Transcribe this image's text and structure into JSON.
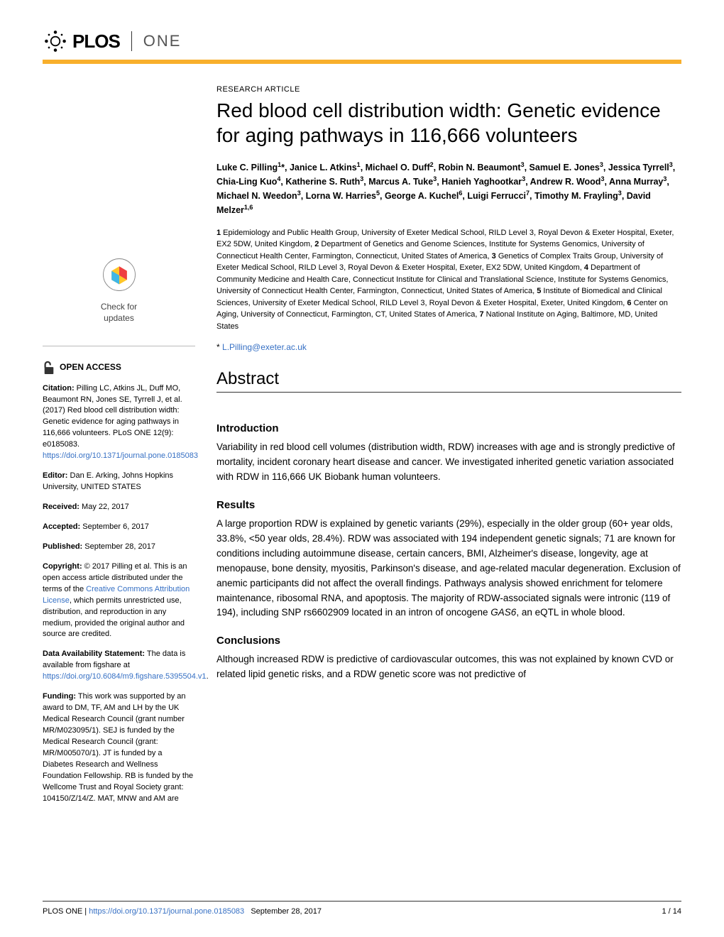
{
  "journal": {
    "name_primary": "PLOS",
    "name_secondary": "ONE",
    "accent_color": "#f8af2c"
  },
  "article": {
    "type": "RESEARCH ARTICLE",
    "title": "Red blood cell distribution width: Genetic evidence for aging pathways in 116,666 volunteers",
    "authors_html": "Luke C. Pilling<sup>1</sup>*, Janice L. Atkins<sup>1</sup>, Michael O. Duff<sup>2</sup>, Robin N. Beaumont<sup>3</sup>, Samuel E. Jones<sup>3</sup>, Jessica Tyrrell<sup>3</sup>, Chia-Ling Kuo<sup>4</sup>, Katherine S. Ruth<sup>3</sup>, Marcus A. Tuke<sup>3</sup>, Hanieh Yaghootkar<sup>3</sup>, Andrew R. Wood<sup>3</sup>, Anna Murray<sup>3</sup>, Michael N. Weedon<sup>3</sup>, Lorna W. Harries<sup>5</sup>, George A. Kuchel<sup>6</sup>, Luigi Ferrucci<sup>7</sup>, Timothy M. Frayling<sup>3</sup>, David Melzer<sup>1,6</sup>",
    "affiliations_html": "<b>1</b> Epidemiology and Public Health Group, University of Exeter Medical School, RILD Level 3, Royal Devon & Exeter Hospital, Exeter, EX2 5DW, United Kingdom, <b>2</b> Department of Genetics and Genome Sciences, Institute for Systems Genomics, University of Connecticut Health Center, Farmington, Connecticut, United States of America, <b>3</b> Genetics of Complex Traits Group, University of Exeter Medical School, RILD Level 3, Royal Devon & Exeter Hospital, Exeter, EX2 5DW, United Kingdom, <b>4</b> Department of Community Medicine and Health Care, Connecticut Institute for Clinical and Translational Science, Institute for Systems Genomics, University of Connecticut Health Center, Farmington, Connecticut, United States of America, <b>5</b> Institute of Biomedical and Clinical Sciences, University of Exeter Medical School, RILD Level 3, Royal Devon & Exeter Hospital, Exeter, United Kingdom, <b>6</b> Center on Aging, University of Connecticut, Farmington, CT, United States of America, <b>7</b> National Institute on Aging, Baltimore, MD, United States",
    "correspondence_prefix": "* ",
    "correspondence_email": "L.Pilling@exeter.ac.uk"
  },
  "abstract": {
    "heading": "Abstract",
    "sections": [
      {
        "title": "Introduction",
        "text": "Variability in red blood cell volumes (distribution width, RDW) increases with age and is strongly predictive of mortality, incident coronary heart disease and cancer. We investigated inherited genetic variation associated with RDW in 116,666 UK Biobank human volunteers."
      },
      {
        "title": "Results",
        "text_html": "A large proportion RDW is explained by genetic variants (29%), especially in the older group (60+ year olds, 33.8%, &lt;50 year olds, 28.4%). RDW was associated with 194 independent genetic signals; 71 are known for conditions including autoimmune disease, certain cancers, BMI, Alzheimer's disease, longevity, age at menopause, bone density, myositis, Parkinson's disease, and age-related macular degeneration. Exclusion of anemic participants did not affect the overall findings. Pathways analysis showed enrichment for telomere maintenance, ribosomal RNA, and apoptosis. The majority of RDW-associated signals were intronic (119 of 194), including SNP rs6602909 located in an intron of oncogene <i>GAS6</i>, an eQTL in whole blood."
      },
      {
        "title": "Conclusions",
        "text": "Although increased RDW is predictive of cardiovascular outcomes, this was not explained by known CVD or related lipid genetic risks, and a RDW genetic score was not predictive of"
      }
    ]
  },
  "sidebar": {
    "check_updates": {
      "line1": "Check for",
      "line2": "updates"
    },
    "open_access": "OPEN ACCESS",
    "citation_label": "Citation:",
    "citation_text": " Pilling LC, Atkins JL, Duff MO, Beaumont RN, Jones SE, Tyrrell J, et al. (2017) Red blood cell distribution width: Genetic evidence for aging pathways in 116,666 volunteers. PLoS ONE 12(9): e0185083. ",
    "citation_link": "https://doi.org/10.1371/journal.pone.0185083",
    "editor_label": "Editor:",
    "editor_text": " Dan E. Arking, Johns Hopkins University, UNITED STATES",
    "received_label": "Received:",
    "received_text": " May 22, 2017",
    "accepted_label": "Accepted:",
    "accepted_text": " September 6, 2017",
    "published_label": "Published:",
    "published_text": " September 28, 2017",
    "copyright_label": "Copyright:",
    "copyright_text_pre": " © 2017 Pilling et al. This is an open access article distributed under the terms of the ",
    "copyright_link": "Creative Commons Attribution License",
    "copyright_text_post": ", which permits unrestricted use, distribution, and reproduction in any medium, provided the original author and source are credited.",
    "data_label": "Data Availability Statement:",
    "data_text_pre": " The data is available from figshare at ",
    "data_link": "https://doi.org/10.6084/m9.figshare.5395504.v1",
    "data_text_post": ".",
    "funding_label": "Funding:",
    "funding_text": " This work was supported by an award to DM, TF, AM and LH by the UK Medical Research Council (grant number MR/M023095/1). SEJ is funded by the Medical Research Council (grant: MR/M005070/1). JT is funded by a Diabetes Research and Wellness Foundation Fellowship. RB is funded by the Wellcome Trust and Royal Society grant: 104150/Z/14/Z. MAT, MNW and AM are"
  },
  "footer": {
    "journal": "PLOS ONE | ",
    "doi": "https://doi.org/10.1371/journal.pone.0185083",
    "date": "September 28, 2017",
    "page": "1 / 14"
  },
  "colors": {
    "link": "#3670c4",
    "crossref_yellow": "#ffc629",
    "crossref_red": "#ef3e42",
    "crossref_blue": "#3fb7e6",
    "text": "#000000",
    "bg": "#ffffff"
  }
}
